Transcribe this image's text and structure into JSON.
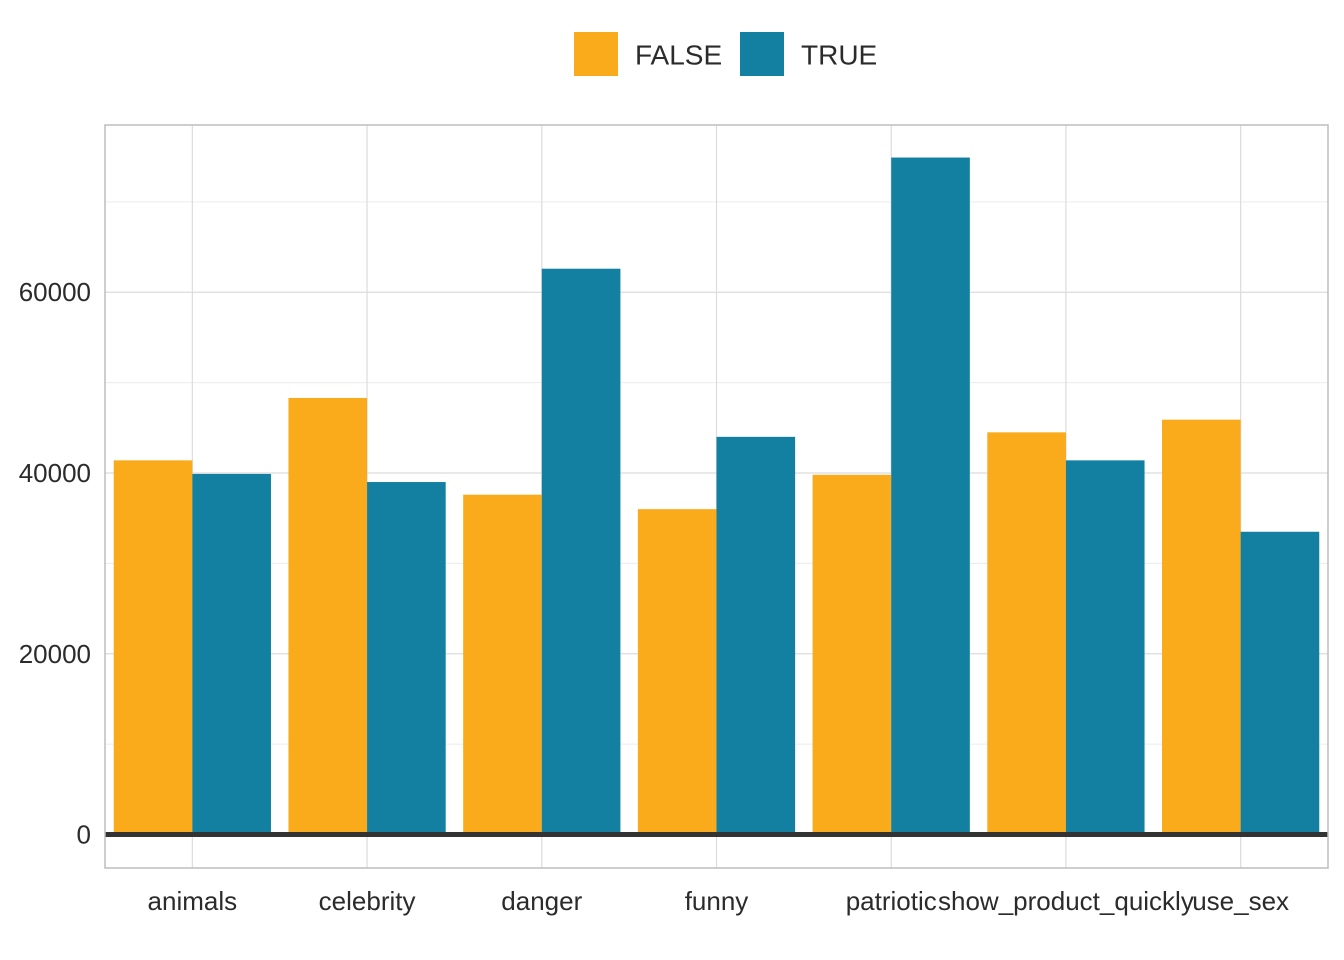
{
  "chart_data": {
    "type": "bar",
    "title": "",
    "xlabel": "",
    "ylabel": "",
    "categories": [
      "animals",
      "celebrity",
      "danger",
      "funny",
      "patriotic",
      "show_product_quickly",
      "use_sex"
    ],
    "series": [
      {
        "name": "FALSE",
        "color": "#F9AB1B",
        "values": [
          41400,
          48300,
          37600,
          36000,
          39800,
          44500,
          45900
        ]
      },
      {
        "name": "TRUE",
        "color": "#1380A1",
        "values": [
          39900,
          39000,
          62600,
          44000,
          74900,
          41400,
          33500
        ]
      }
    ],
    "ylim": [
      -3700,
      78500
    ],
    "yticks": [
      0,
      20000,
      40000,
      60000
    ],
    "ytick_labels": [
      "0",
      "20000",
      "40000",
      "60000"
    ],
    "grid": true,
    "legend_position": "top"
  }
}
